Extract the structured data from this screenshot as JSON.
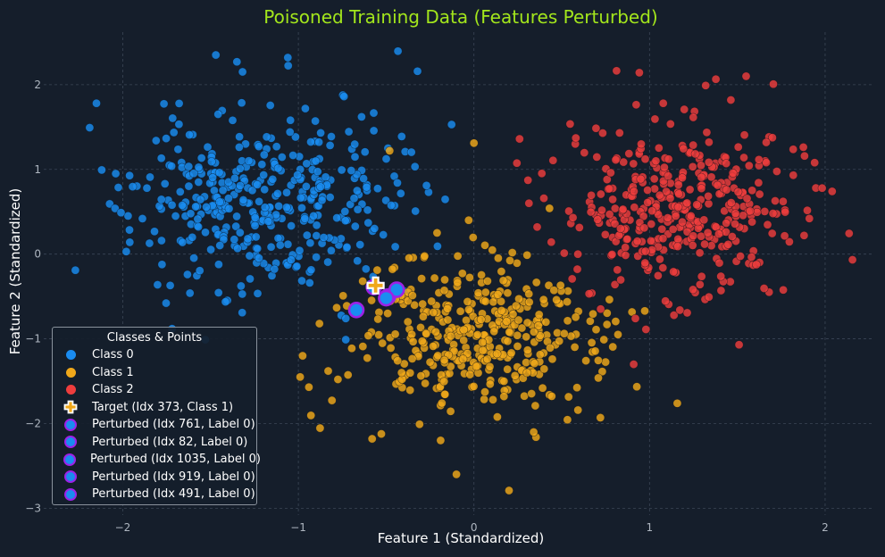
{
  "chart_data": {
    "type": "scatter",
    "title": "Poisoned Training Data (Features Perturbed)",
    "xlabel": "Feature 1 (Standardized)",
    "ylabel": "Feature 2 (Standardized)",
    "xlim": [
      -2.45,
      2.28
    ],
    "ylim": [
      -3.08,
      2.62
    ],
    "xticks": [
      -2,
      -1,
      0,
      1,
      2
    ],
    "yticks": [
      -3,
      -2,
      -1,
      0,
      1,
      2
    ],
    "grid": true,
    "legend": {
      "title": "Classes & Points",
      "placement": "lower-left",
      "entries": [
        {
          "label": "Class 0",
          "kind": "dot",
          "color": "#1a8cf0"
        },
        {
          "label": "Class 1",
          "kind": "dot",
          "color": "#f0a81a"
        },
        {
          "label": "Class 2",
          "kind": "dot",
          "color": "#ee3d3d"
        },
        {
          "label": "Target (Idx 373, Class 1)",
          "kind": "plus",
          "color": "#f0a81a"
        },
        {
          "label": "Perturbed (Idx 761, Label 0)",
          "kind": "perturbed",
          "color": "#1a8cf0"
        },
        {
          "label": "Perturbed (Idx 82, Label 0)",
          "kind": "perturbed",
          "color": "#1a8cf0"
        },
        {
          "label": "Perturbed (Idx 1035, Label 0)",
          "kind": "perturbed",
          "color": "#1a8cf0"
        },
        {
          "label": "Perturbed (Idx 919, Label 0)",
          "kind": "perturbed",
          "color": "#1a8cf0"
        },
        {
          "label": "Perturbed (Idx 491, Label 0)",
          "kind": "perturbed",
          "color": "#1a8cf0"
        }
      ]
    },
    "series": [
      {
        "name": "Class 0",
        "color": "#1a8cf0",
        "center": [
          -1.2,
          0.6
        ],
        "spread": [
          0.37,
          0.52
        ],
        "count": 380,
        "seed": 11,
        "points": [
          [
            -2.27,
            -0.19
          ],
          [
            -2.15,
            1.78
          ],
          [
            -2.04,
            0.95
          ],
          [
            -2.01,
            0.49
          ],
          [
            -1.98,
            0.03
          ],
          [
            -1.96,
            0.14
          ],
          [
            -1.81,
            1.34
          ],
          [
            -1.76,
            0.83
          ],
          [
            -1.73,
            -0.37
          ],
          [
            -1.53,
            -1.01
          ],
          [
            -1.47,
            2.35
          ],
          [
            -1.35,
            2.27
          ],
          [
            -1.32,
            -0.69
          ],
          [
            -1.06,
            2.32
          ],
          [
            -0.74,
            1.86
          ],
          [
            -0.73,
            -0.76
          ],
          [
            -0.64,
            1.62
          ],
          [
            -0.49,
            1.25
          ],
          [
            -0.27,
            0.81
          ],
          [
            -0.73,
            -1.01
          ]
        ]
      },
      {
        "name": "Class 1",
        "color": "#f0a81a",
        "center": [
          0.0,
          -1.0
        ],
        "spread": [
          0.34,
          0.47
        ],
        "count": 380,
        "seed": 23,
        "points": [
          [
            -0.48,
            1.22
          ],
          [
            0.0,
            1.31
          ],
          [
            -0.21,
            0.25
          ],
          [
            -0.03,
            0.4
          ],
          [
            0.2,
            -2.79
          ],
          [
            -0.1,
            -2.6
          ],
          [
            0.72,
            -1.93
          ],
          [
            0.74,
            -1.01
          ],
          [
            -0.99,
            -1.45
          ],
          [
            -0.94,
            -1.57
          ],
          [
            -0.88,
            -0.82
          ],
          [
            -0.83,
            -1.38
          ],
          [
            -0.58,
            -2.18
          ],
          [
            0.34,
            -2.1
          ]
        ]
      },
      {
        "name": "Class 2",
        "color": "#ee3d3d",
        "center": [
          1.2,
          0.55
        ],
        "spread": [
          0.33,
          0.52
        ],
        "count": 380,
        "seed": 37,
        "points": [
          [
            0.26,
            1.36
          ],
          [
            0.36,
            0.32
          ],
          [
            0.58,
            1.37
          ],
          [
            0.91,
            -1.3
          ],
          [
            1.32,
            1.99
          ],
          [
            1.51,
            -1.07
          ],
          [
            1.55,
            2.1
          ],
          [
            1.94,
            1.08
          ],
          [
            2.04,
            0.74
          ],
          [
            1.91,
            0.42
          ],
          [
            1.88,
            0.22
          ]
        ]
      }
    ],
    "target": {
      "label": "Target (Idx 373, Class 1)",
      "x": -0.56,
      "y": -0.37
    },
    "perturbed": [
      {
        "label": "Perturbed (Idx 761, Label 0)",
        "x": -0.57,
        "y": -0.39
      },
      {
        "label": "Perturbed (Idx 82, Label 0)",
        "x": -0.49,
        "y": -0.5
      },
      {
        "label": "Perturbed (Idx 1035, Label 0)",
        "x": -0.44,
        "y": -0.42
      },
      {
        "label": "Perturbed (Idx 919, Label 0)",
        "x": -0.67,
        "y": -0.66
      },
      {
        "label": "Perturbed (Idx 491, Label 0)",
        "x": -0.5,
        "y": -0.52
      }
    ]
  }
}
